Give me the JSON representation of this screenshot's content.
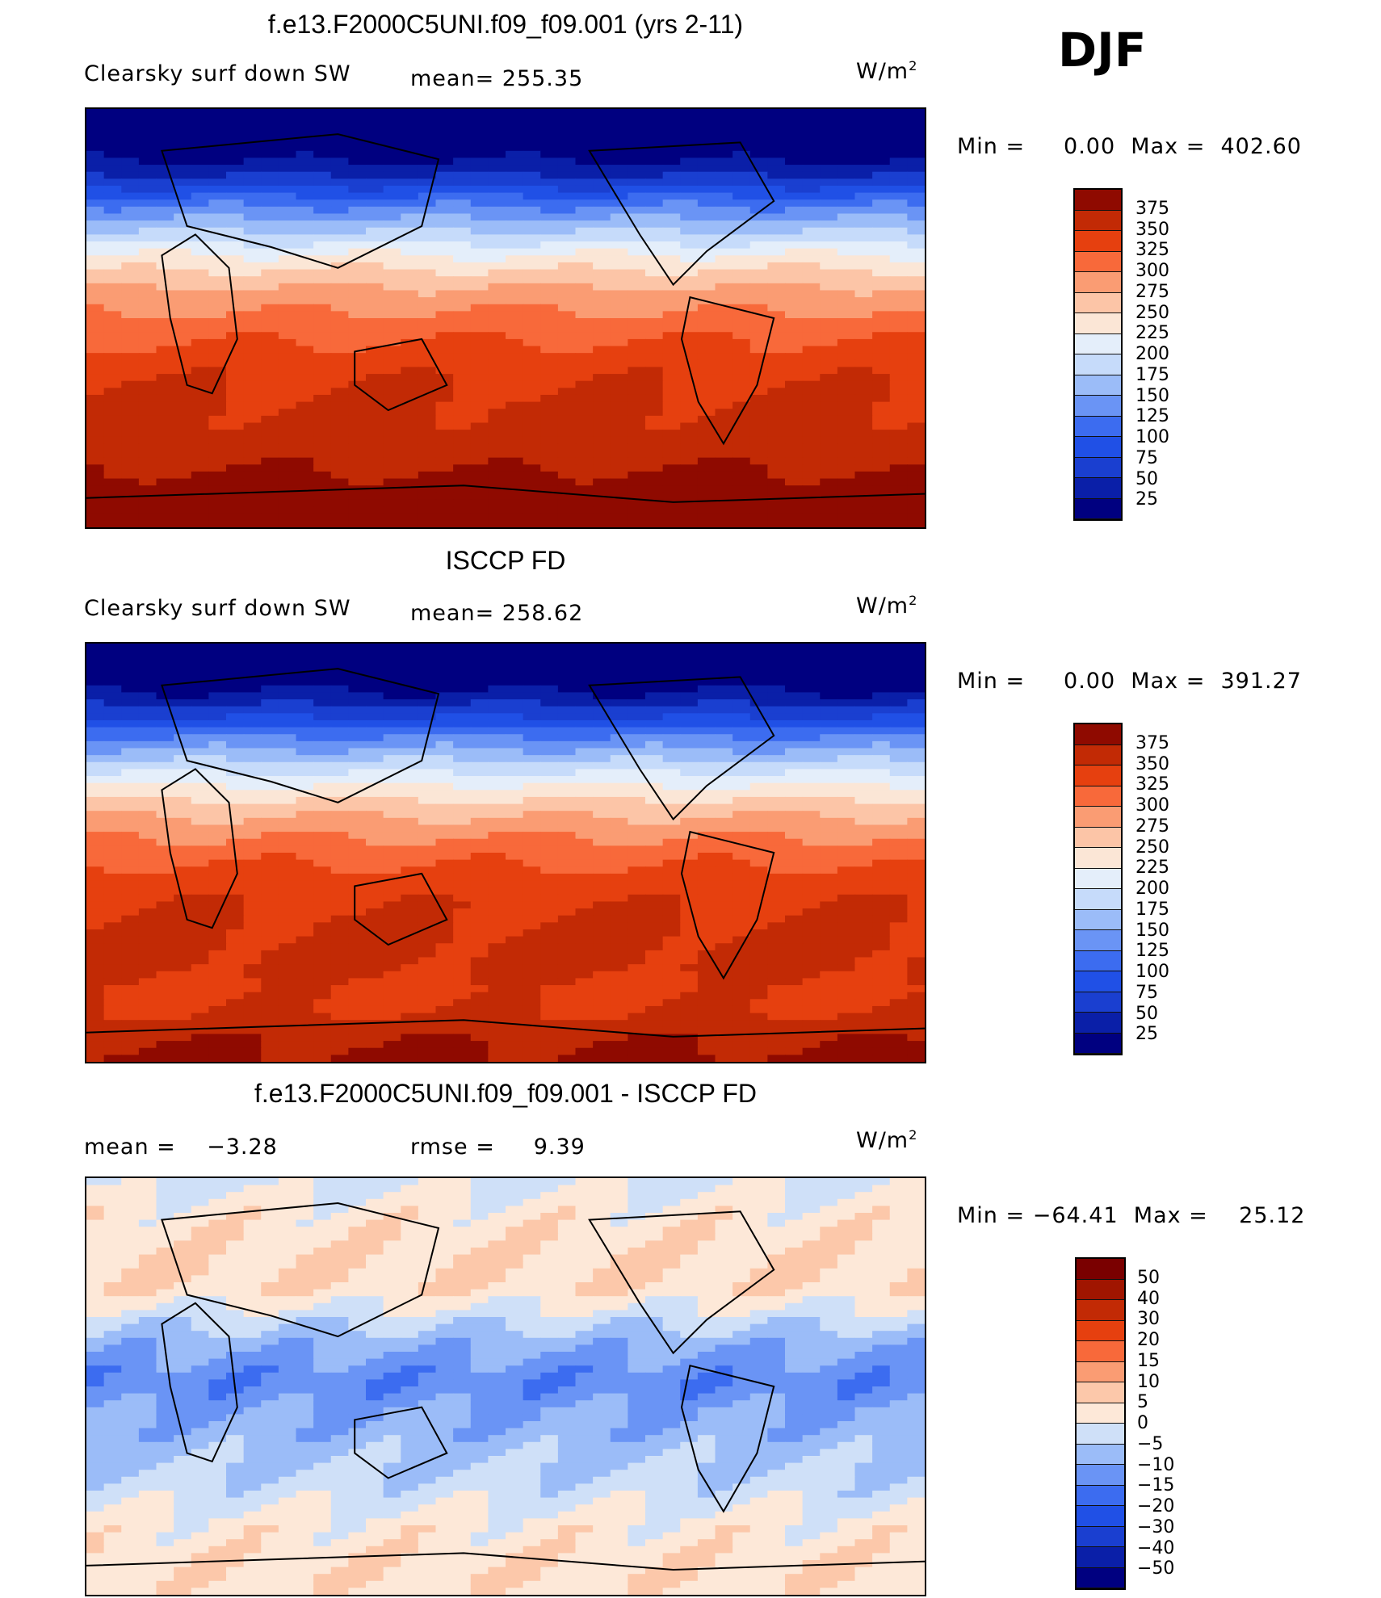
{
  "season": "DJF",
  "units_base": "W/m",
  "units_exp": "2",
  "panels": [
    {
      "title": "f.e13.F2000C5UNI.f09_f09.001 (yrs 2-11)",
      "left_label": "Clearsky surf down SW",
      "stat": "mean= 255.35",
      "minmax": "Min =     0.00  Max =  402.60"
    },
    {
      "title": "ISCCP FD",
      "left_label": "Clearsky surf down SW",
      "stat": "mean= 258.62",
      "minmax": "Min =     0.00  Max =  391.27"
    },
    {
      "title": "f.e13.F2000C5UNI.f09_f09.001 - ISCCP FD",
      "left_label": "mean =    −3.28",
      "stat": "rmse =     9.39",
      "minmax": "Min = −64.41  Max =    25.12"
    }
  ],
  "chart_data": [
    {
      "type": "heatmap",
      "title": "f.e13.F2000C5UNI.f09_f09.001 (yrs 2-11)",
      "variable": "Clearsky surf down SW",
      "mean": 255.35,
      "min": 0.0,
      "max": 402.6,
      "units": "W/m2",
      "levels": [
        25,
        50,
        75,
        100,
        125,
        150,
        175,
        200,
        225,
        250,
        275,
        300,
        325,
        350,
        375
      ],
      "level_labels": [
        "375",
        "350",
        "325",
        "300",
        "275",
        "250",
        "225",
        "200",
        "175",
        "150",
        "125",
        "100",
        "75",
        "50",
        "25"
      ],
      "colors": [
        "#000080",
        "#0a1fa8",
        "#1a3fd0",
        "#2050e6",
        "#3c6cf0",
        "#6a94f5",
        "#9bbcf8",
        "#c6dbfa",
        "#e4eefa",
        "#fbe6d6",
        "#fcc5a7",
        "#fa9c73",
        "#f8693a",
        "#e6400f",
        "#c22a05",
        "#8f0a00"
      ],
      "lat_profile": [
        5,
        5,
        20,
        60,
        120,
        165,
        215,
        255,
        285,
        305,
        325,
        340,
        350,
        355,
        358,
        365,
        380,
        395,
        400
      ]
    },
    {
      "type": "heatmap",
      "title": "ISCCP FD",
      "variable": "Clearsky surf down SW",
      "mean": 258.62,
      "min": 0.0,
      "max": 391.27,
      "units": "W/m2",
      "levels": [
        25,
        50,
        75,
        100,
        125,
        150,
        175,
        200,
        225,
        250,
        275,
        300,
        325,
        350,
        375
      ],
      "level_labels": [
        "375",
        "350",
        "325",
        "300",
        "275",
        "250",
        "225",
        "200",
        "175",
        "150",
        "125",
        "100",
        "75",
        "50",
        "25"
      ],
      "colors": [
        "#000080",
        "#0a1fa8",
        "#1a3fd0",
        "#2050e6",
        "#3c6cf0",
        "#6a94f5",
        "#9bbcf8",
        "#c6dbfa",
        "#e4eefa",
        "#fbe6d6",
        "#fcc5a7",
        "#fa9c73",
        "#f8693a",
        "#e6400f",
        "#c22a05",
        "#8f0a00"
      ],
      "lat_profile": [
        5,
        5,
        25,
        70,
        130,
        175,
        225,
        262,
        292,
        315,
        333,
        345,
        352,
        356,
        356,
        345,
        350,
        370,
        380
      ]
    },
    {
      "type": "heatmap",
      "title": "f.e13.F2000C5UNI.f09_f09.001 - ISCCP FD",
      "mean": -3.28,
      "rmse": 9.39,
      "min": -64.41,
      "max": 25.12,
      "units": "W/m2",
      "levels": [
        -50,
        -40,
        -30,
        -20,
        -15,
        -10,
        -5,
        0,
        5,
        10,
        15,
        20,
        30,
        40,
        50
      ],
      "level_labels": [
        "50",
        "40",
        "30",
        "20",
        "15",
        "10",
        "5",
        "0",
        "−5",
        "−10",
        "−15",
        "−20",
        "−30",
        "−40",
        "−50"
      ],
      "colors": [
        "#000080",
        "#0a1fa8",
        "#1a3fd0",
        "#2050e6",
        "#3c6cf0",
        "#6a94f5",
        "#9bbcf8",
        "#cfe0f8",
        "#fde8d8",
        "#fcc8aa",
        "#fa9c73",
        "#f8693a",
        "#e6400f",
        "#c22a05",
        "#a01500",
        "#7a0000"
      ],
      "lat_profile": [
        -2,
        2,
        3,
        4,
        5,
        3,
        -3,
        -8,
        -12,
        -14,
        -10,
        -8,
        -6,
        -4,
        -2,
        2,
        3,
        4,
        3
      ]
    }
  ]
}
